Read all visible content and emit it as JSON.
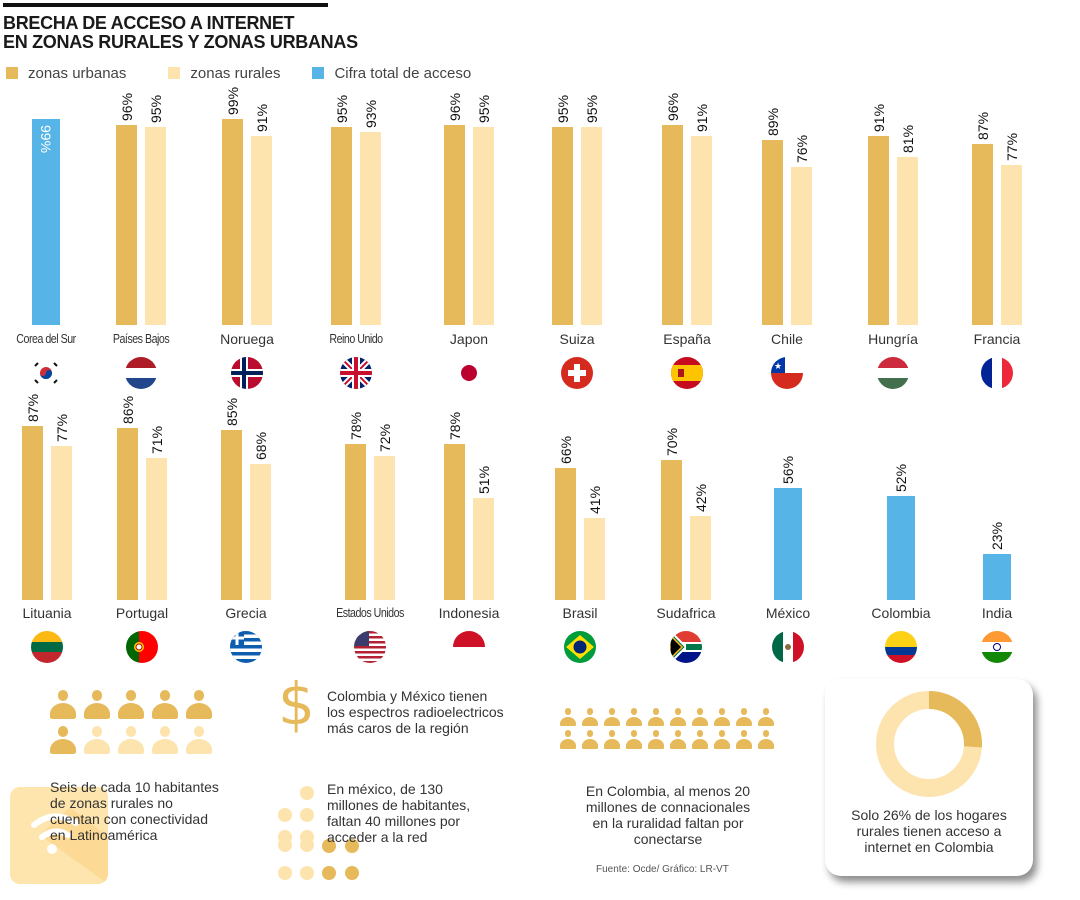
{
  "header": {
    "title_line1": "BRECHA DE ACCESO A INTERNET",
    "title_line2": "EN  ZONAS RURALES Y ZONAS URBANAS"
  },
  "colors": {
    "urban": "#e6b95a",
    "rural": "#fde3ad",
    "total": "#56b5e6"
  },
  "legend": [
    {
      "label": "zonas urbanas",
      "series": "urban"
    },
    {
      "label": "zonas rurales",
      "series": "rural"
    },
    {
      "label": "Cifra total de acceso",
      "series": "total"
    }
  ],
  "chart_data": {
    "type": "bar",
    "title": "BRECHA DE ACCESO A INTERNET EN ZONAS RURALES Y ZONAS URBANAS",
    "xlabel": "",
    "ylabel": "",
    "unit": "%",
    "ylim": [
      0,
      100
    ],
    "grid": false,
    "legend_position": "top-left",
    "series_names": [
      "zonas urbanas",
      "zonas rurales",
      "Cifra total de acceso"
    ],
    "rows": [
      [
        {
          "country": "Corea del Sur",
          "flag": "south-korea",
          "total": 99,
          "narrow": true
        },
        {
          "country": "Países Bajos",
          "flag": "netherlands",
          "urban": 96,
          "rural": 95,
          "narrow": true
        },
        {
          "country": "Noruega",
          "flag": "norway",
          "urban": 99,
          "rural": 91
        },
        {
          "country": "Reino Unido",
          "flag": "united-kingdom",
          "urban": 95,
          "rural": 93,
          "narrow": true
        },
        {
          "country": "Japon",
          "flag": "japan",
          "urban": 96,
          "rural": 95
        },
        {
          "country": "Suiza",
          "flag": "switzerland",
          "urban": 95,
          "rural": 95
        },
        {
          "country": "España",
          "flag": "spain",
          "urban": 96,
          "rural": 91
        },
        {
          "country": "Chile",
          "flag": "chile",
          "urban": 89,
          "rural": 76
        },
        {
          "country": "Hungría",
          "flag": "hungary",
          "urban": 91,
          "rural": 81
        },
        {
          "country": "Francia",
          "flag": "france",
          "urban": 87,
          "rural": 77
        }
      ],
      [
        {
          "country": "Lituania",
          "flag": "lithuania",
          "urban": 87,
          "rural": 77
        },
        {
          "country": "Portugal",
          "flag": "portugal",
          "urban": 86,
          "rural": 71
        },
        {
          "country": "Grecia",
          "flag": "greece",
          "urban": 85,
          "rural": 68
        },
        {
          "country": "Estados Unidos",
          "flag": "united-states",
          "urban": 78,
          "rural": 72,
          "narrow": true
        },
        {
          "country": "Indonesia",
          "flag": "indonesia",
          "urban": 78,
          "rural": 51
        },
        {
          "country": "Brasil",
          "flag": "brazil",
          "urban": 66,
          "rural": 41
        },
        {
          "country": "Sudafrica",
          "flag": "south-africa",
          "urban": 70,
          "rural": 42
        },
        {
          "country": "México",
          "flag": "mexico",
          "total": 56
        },
        {
          "country": "Colombia",
          "flag": "colombia",
          "total": 52
        },
        {
          "country": "India",
          "flag": "india",
          "total": 23
        }
      ]
    ]
  },
  "facts": {
    "latam": {
      "text_lines": [
        "Seis de cada 10 habitantes",
        "de zonas rurales no",
        "cuentan con conectividad",
        "en Latinoamérica"
      ],
      "people_total": 10,
      "people_highlighted": 6
    },
    "spectrum": {
      "icon": "dollar-icon",
      "text_lines": [
        "Colombia y México tienen",
        "los espectros radioelectricos",
        "más caros de la región"
      ]
    },
    "mexico": {
      "text_lines": [
        "En méxico, de 130",
        "millones de habitantes,",
        "faltan 40 millones por",
        "acceder a la red"
      ]
    },
    "colombia_people": {
      "text_lines": [
        "En Colombia, al menos 20",
        "millones de connacionales",
        "en la ruralidad faltan por",
        "conectarse"
      ],
      "people_total": 20
    },
    "donut": {
      "percent_with_access": 26,
      "text_lines": [
        "Solo 26% de los hogares",
        "rurales tienen acceso a",
        "internet en Colombia"
      ]
    }
  },
  "source": "Fuente: Ocde/ Gráfico: LR-VT"
}
